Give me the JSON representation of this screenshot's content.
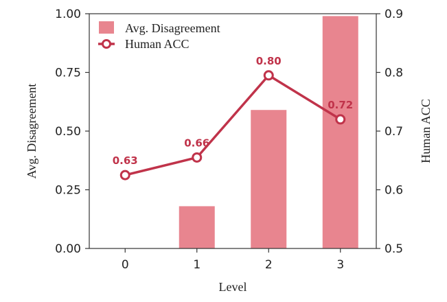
{
  "chart_data": {
    "type": "bar",
    "categories": [
      "0",
      "1",
      "2",
      "3"
    ],
    "xlabel": "Level",
    "ylabel": "Avg. Disagreement",
    "y2label": "Human ACC",
    "ylim": [
      0,
      1
    ],
    "y2lim": [
      0.5,
      0.9
    ],
    "yticks": [
      "0.00",
      "0.25",
      "0.50",
      "0.75",
      "1.00"
    ],
    "y2ticks": [
      "0.5",
      "0.6",
      "0.7",
      "0.8",
      "0.9"
    ],
    "grid": false,
    "legend_position": "top-left",
    "series": [
      {
        "name": "Avg. Disagreement",
        "type": "bar",
        "axis": "left",
        "values": [
          0.0,
          0.18,
          0.59,
          0.99
        ],
        "color": "#e8858f"
      },
      {
        "name": "Human ACC",
        "type": "line",
        "axis": "right",
        "values": [
          0.625,
          0.655,
          0.795,
          0.72
        ],
        "labels": [
          "0.63",
          "0.66",
          "0.80",
          "0.72"
        ],
        "color": "#c0334a"
      }
    ]
  }
}
